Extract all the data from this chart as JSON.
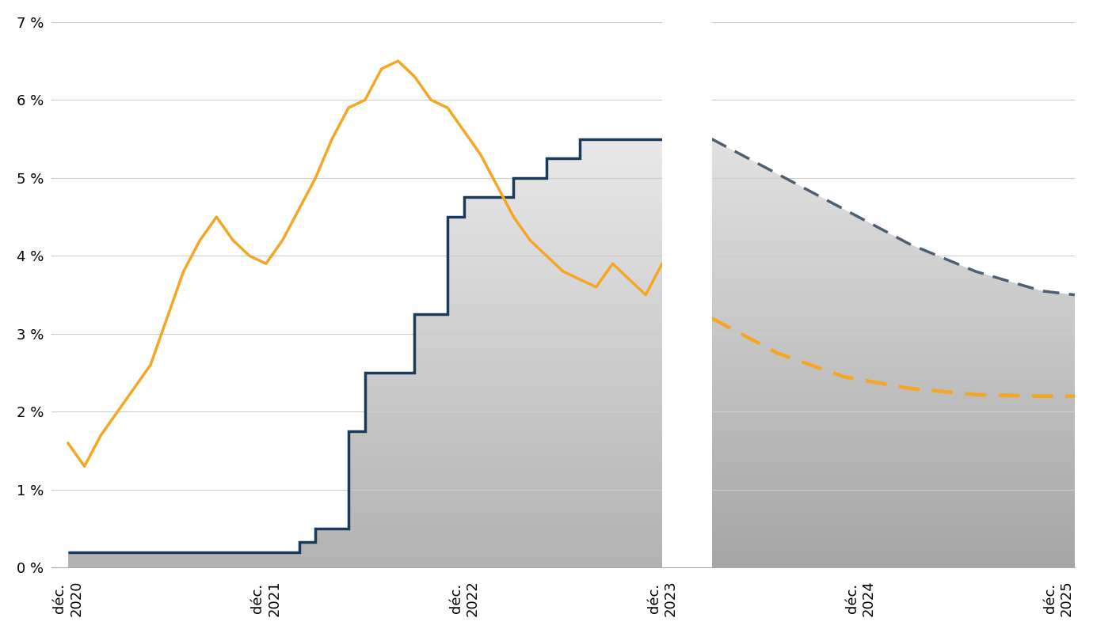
{
  "bg_color": "#ffffff",
  "grid_color": "#cccccc",
  "ylim": [
    0,
    7
  ],
  "yticks": [
    0,
    1,
    2,
    3,
    4,
    5,
    6,
    7
  ],
  "ytick_labels": [
    "0 %",
    "1 %",
    "2 %",
    "3 %",
    "4 %",
    "5 %",
    "6 %",
    "7 %"
  ],
  "xtick_labels": [
    "déc.\n2020",
    "déc.\n2021",
    "déc.\n2022",
    "déc.\n2023",
    "déc.\n2024",
    "déc.\n2025"
  ],
  "xtick_pos": [
    0,
    12,
    24,
    36,
    48,
    60
  ],
  "navy_color": "#1a3a5c",
  "orange_color": "#f5a623",
  "dashed_navy_color": "#4d5f70",
  "gap_start": 36,
  "gap_end": 39,
  "fed_step_x": [
    0,
    14,
    14,
    15,
    15,
    17,
    17,
    18,
    18,
    21,
    21,
    23,
    23,
    24,
    24,
    27,
    27,
    29,
    29,
    31,
    31,
    36
  ],
  "fed_step_y": [
    0.2,
    0.2,
    0.33,
    0.33,
    0.5,
    0.5,
    1.75,
    1.75,
    2.5,
    2.5,
    3.25,
    3.25,
    4.5,
    4.5,
    4.75,
    4.75,
    5.0,
    5.0,
    5.25,
    5.25,
    5.5,
    5.5
  ],
  "inflation_x": [
    0,
    1,
    2,
    3,
    4,
    5,
    6,
    7,
    8,
    9,
    10,
    11,
    12,
    13,
    14,
    15,
    16,
    17,
    18,
    19,
    20,
    21,
    22,
    23,
    24,
    25,
    26,
    27,
    28,
    29,
    30,
    31,
    32,
    33,
    34,
    35,
    36
  ],
  "inflation_y": [
    1.6,
    1.3,
    1.7,
    2.0,
    2.3,
    2.6,
    3.2,
    3.8,
    4.2,
    4.5,
    4.2,
    4.0,
    3.9,
    4.2,
    4.6,
    5.0,
    5.5,
    5.9,
    6.0,
    6.4,
    6.5,
    6.3,
    6.0,
    5.9,
    5.6,
    5.3,
    4.9,
    4.5,
    4.2,
    4.0,
    3.8,
    3.7,
    3.6,
    3.9,
    3.7,
    3.5,
    3.9
  ],
  "forecast_x": [
    39,
    43,
    47,
    51,
    55,
    59,
    61
  ],
  "fed_forecast_upper": [
    5.5,
    5.05,
    4.6,
    4.15,
    3.8,
    3.55,
    3.5
  ],
  "inflation_forecast_x": [
    39,
    43,
    47,
    51,
    55,
    59,
    61
  ],
  "inflation_forecast_y": [
    3.2,
    2.75,
    2.45,
    2.3,
    2.22,
    2.2,
    2.2
  ]
}
